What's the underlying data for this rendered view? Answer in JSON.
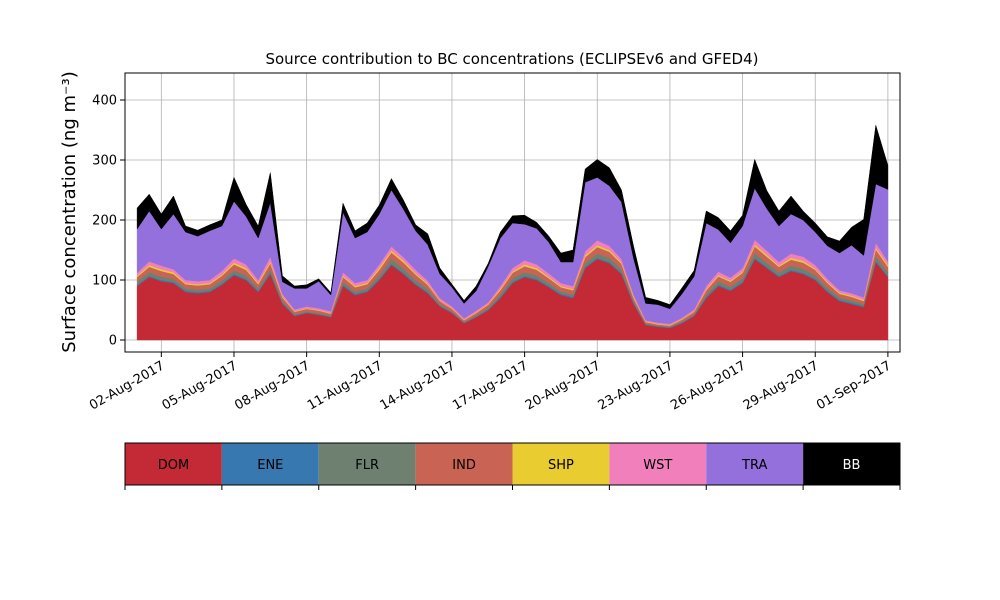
{
  "chart_data": {
    "type": "area",
    "stacked": true,
    "title": "Source contribution to BC concentrations (ECLIPSEv6 and GFED4)",
    "ylabel": "Surface concentration (ng m⁻³)",
    "xlabel": "",
    "xlim_days": [
      31.5,
      63.5
    ],
    "ylim": [
      -20,
      445
    ],
    "grid": true,
    "x_ticks": [
      {
        "label": "02-Aug-2017",
        "day": 33
      },
      {
        "label": "05-Aug-2017",
        "day": 36
      },
      {
        "label": "08-Aug-2017",
        "day": 39
      },
      {
        "label": "11-Aug-2017",
        "day": 42
      },
      {
        "label": "14-Aug-2017",
        "day": 45
      },
      {
        "label": "17-Aug-2017",
        "day": 48
      },
      {
        "label": "20-Aug-2017",
        "day": 51
      },
      {
        "label": "23-Aug-2017",
        "day": 54
      },
      {
        "label": "26-Aug-2017",
        "day": 57
      },
      {
        "label": "29-Aug-2017",
        "day": 60
      },
      {
        "label": "01-Sep-2017",
        "day": 63
      }
    ],
    "y_ticks": [
      {
        "label": "0",
        "value": 0
      },
      {
        "label": "100",
        "value": 100
      },
      {
        "label": "200",
        "value": 200
      },
      {
        "label": "300",
        "value": 300
      },
      {
        "label": "400",
        "value": 400
      }
    ],
    "day_of_month_note_day": 32,
    "x": [
      32.0,
      32.5,
      33.0,
      33.5,
      34.0,
      34.5,
      35.0,
      35.5,
      36.0,
      36.5,
      37.0,
      37.5,
      38.0,
      38.5,
      39.0,
      39.5,
      40.0,
      40.5,
      41.0,
      41.5,
      42.0,
      42.5,
      43.0,
      43.5,
      44.0,
      44.5,
      45.0,
      45.5,
      46.0,
      46.5,
      47.0,
      47.5,
      48.0,
      48.5,
      49.0,
      49.5,
      50.0,
      50.5,
      51.0,
      51.5,
      52.0,
      52.5,
      53.0,
      53.5,
      54.0,
      54.5,
      55.0,
      55.5,
      56.0,
      56.5,
      57.0,
      57.5,
      58.0,
      58.5,
      59.0,
      59.5,
      60.0,
      60.5,
      61.0,
      61.5,
      62.0,
      62.5,
      63.0
    ],
    "series": [
      {
        "name": "DOM",
        "color": "#c42a36",
        "values": [
          90,
          105,
          98,
          95,
          80,
          78,
          80,
          92,
          108,
          100,
          80,
          110,
          60,
          40,
          45,
          42,
          38,
          90,
          75,
          80,
          100,
          125,
          110,
          92,
          78,
          56,
          45,
          28,
          38,
          50,
          70,
          95,
          105,
          100,
          88,
          75,
          70,
          120,
          135,
          128,
          110,
          60,
          25,
          22,
          20,
          28,
          40,
          70,
          90,
          82,
          95,
          135,
          120,
          105,
          115,
          110,
          100,
          80,
          65,
          60,
          55,
          130,
          105
        ]
      },
      {
        "name": "ENE",
        "color": "#3878b0",
        "values": [
          2,
          2,
          2,
          2,
          2,
          2,
          2,
          2,
          2,
          2,
          2,
          2,
          2,
          1,
          1,
          1,
          1,
          2,
          2,
          2,
          2,
          2,
          2,
          2,
          2,
          1,
          1,
          1,
          1,
          1,
          2,
          2,
          2,
          2,
          2,
          2,
          2,
          2,
          2,
          2,
          2,
          2,
          1,
          1,
          1,
          1,
          1,
          2,
          2,
          2,
          2,
          2,
          2,
          2,
          2,
          2,
          2,
          2,
          2,
          2,
          2,
          2,
          2
        ]
      },
      {
        "name": "FLR",
        "color": "#6e8070",
        "values": [
          5,
          6,
          6,
          5,
          4,
          4,
          4,
          5,
          6,
          6,
          4,
          6,
          3,
          2,
          2,
          2,
          2,
          5,
          4,
          4,
          6,
          8,
          7,
          6,
          5,
          3,
          2,
          1,
          2,
          3,
          4,
          6,
          6,
          6,
          5,
          4,
          4,
          6,
          7,
          7,
          6,
          3,
          1,
          1,
          1,
          2,
          2,
          4,
          6,
          5,
          6,
          8,
          7,
          6,
          7,
          7,
          6,
          5,
          4,
          4,
          3,
          8,
          6
        ]
      },
      {
        "name": "IND",
        "color": "#c96455",
        "values": [
          8,
          9,
          9,
          8,
          7,
          7,
          7,
          8,
          10,
          9,
          7,
          10,
          6,
          4,
          4,
          4,
          3,
          8,
          7,
          7,
          9,
          11,
          10,
          9,
          7,
          5,
          4,
          3,
          4,
          5,
          7,
          9,
          10,
          9,
          8,
          7,
          7,
          10,
          11,
          10,
          9,
          5,
          3,
          2,
          2,
          3,
          4,
          7,
          8,
          8,
          9,
          11,
          10,
          9,
          10,
          10,
          9,
          8,
          6,
          6,
          5,
          11,
          9
        ]
      },
      {
        "name": "SHP",
        "color": "#e8cc30",
        "values": [
          2,
          3,
          3,
          3,
          2,
          2,
          2,
          2,
          3,
          3,
          2,
          3,
          2,
          1,
          1,
          1,
          1,
          2,
          2,
          2,
          3,
          3,
          3,
          2,
          2,
          1,
          1,
          1,
          1,
          1,
          2,
          2,
          3,
          3,
          2,
          2,
          2,
          3,
          3,
          3,
          2,
          2,
          1,
          1,
          1,
          1,
          1,
          2,
          2,
          2,
          2,
          3,
          3,
          2,
          3,
          3,
          2,
          2,
          2,
          2,
          2,
          3,
          3
        ]
      },
      {
        "name": "WST",
        "color": "#f07fbc",
        "values": [
          5,
          6,
          6,
          5,
          5,
          5,
          5,
          6,
          7,
          6,
          5,
          8,
          4,
          3,
          3,
          3,
          3,
          6,
          5,
          5,
          6,
          7,
          6,
          6,
          5,
          4,
          3,
          2,
          3,
          3,
          5,
          6,
          7,
          6,
          6,
          5,
          5,
          7,
          8,
          7,
          6,
          4,
          2,
          2,
          2,
          2,
          3,
          5,
          6,
          5,
          6,
          8,
          7,
          6,
          7,
          7,
          6,
          5,
          4,
          4,
          4,
          8,
          6
        ]
      },
      {
        "name": "TRA",
        "color": "#9370db",
        "values": [
          73,
          84,
          61,
          92,
          80,
          75,
          82,
          75,
          95,
          80,
          70,
          90,
          20,
          35,
          30,
          45,
          27,
          100,
          75,
          80,
          84,
          94,
          80,
          65,
          60,
          40,
          32,
          25,
          33,
          60,
          80,
          75,
          60,
          60,
          52,
          35,
          40,
          115,
          105,
          100,
          95,
          60,
          28,
          30,
          25,
          40,
          55,
          105,
          70,
          58,
          70,
          86,
          70,
          60,
          66,
          61,
          55,
          55,
          62,
          80,
          70,
          98,
          120
        ]
      },
      {
        "name": "BB",
        "color": "#000000",
        "values": [
          35,
          28,
          25,
          30,
          10,
          10,
          10,
          10,
          40,
          20,
          20,
          50,
          10,
          4,
          6,
          4,
          4,
          15,
          12,
          15,
          15,
          19,
          15,
          10,
          18,
          10,
          5,
          5,
          8,
          5,
          10,
          12,
          15,
          10,
          10,
          15,
          20,
          22,
          30,
          30,
          20,
          20,
          10,
          7,
          7,
          10,
          10,
          20,
          20,
          20,
          18,
          48,
          30,
          25,
          30,
          15,
          15,
          15,
          20,
          30,
          60,
          98,
          40
        ]
      }
    ],
    "legend": {
      "placement": "below",
      "entries": [
        {
          "label": "DOM",
          "color": "#c42a36",
          "text_color": "#000000"
        },
        {
          "label": "ENE",
          "color": "#3878b0",
          "text_color": "#000000"
        },
        {
          "label": "FLR",
          "color": "#6e8070",
          "text_color": "#000000"
        },
        {
          "label": "IND",
          "color": "#c96455",
          "text_color": "#000000"
        },
        {
          "label": "SHP",
          "color": "#e8cc30",
          "text_color": "#000000"
        },
        {
          "label": "WST",
          "color": "#f07fbc",
          "text_color": "#000000"
        },
        {
          "label": "TRA",
          "color": "#9370db",
          "text_color": "#000000"
        },
        {
          "label": "BB",
          "color": "#000000",
          "text_color": "#ffffff"
        }
      ]
    }
  }
}
